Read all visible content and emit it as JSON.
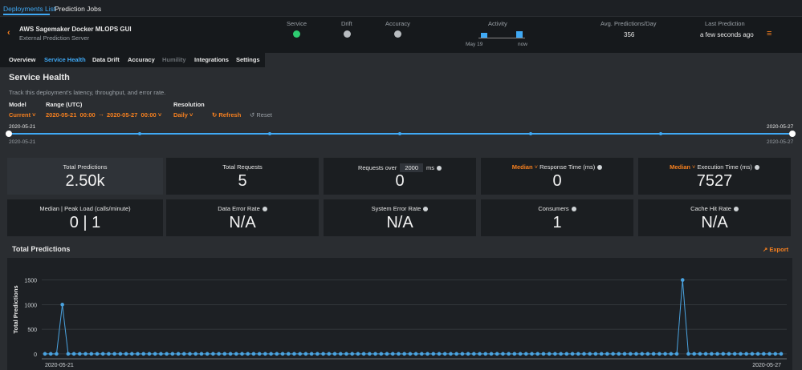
{
  "top_tabs": [
    "Deployments List",
    "Prediction Jobs"
  ],
  "deployment": {
    "name": "AWS Sagemaker Docker MLOPS GUI",
    "subtitle": "External Prediction Server"
  },
  "status": {
    "service": "Service",
    "drift": "Drift",
    "accuracy": "Accuracy",
    "activity": "Activity",
    "activity_start": "May 19",
    "activity_end": "now",
    "avg_label": "Avg. Predictions/Day",
    "avg_value": "356",
    "last_label": "Last Prediction",
    "last_value": "a few seconds ago"
  },
  "tabs": [
    "Overview",
    "Service Health",
    "Data Drift",
    "Accuracy",
    "Humility",
    "Integrations",
    "Settings"
  ],
  "section": {
    "title": "Service Health",
    "description": "Track this deployment's latency, throughput, and error rate."
  },
  "controls": {
    "model_label": "Model",
    "model_value": "Current",
    "range_label": "Range (UTC)",
    "start_date": "2020-05-21",
    "start_time": "00:00",
    "end_date": "2020-05-27",
    "end_time": "00:00",
    "resolution_label": "Resolution",
    "resolution_value": "Daily",
    "refresh": "Refresh",
    "reset": "Reset"
  },
  "slider": {
    "start_top": "2020-05-21",
    "end_top": "2020-05-27",
    "start_bottom": "2020-05-21",
    "end_bottom": "2020-05-27"
  },
  "tiles": [
    {
      "label": "Total Predictions",
      "value": "2.50k"
    },
    {
      "label": "Total Requests",
      "value": "5"
    },
    {
      "label": "Requests over",
      "input": "2000",
      "unit": "ms",
      "value": "0"
    },
    {
      "dropdown": "Median",
      "label": "Response Time (ms)",
      "value": "0"
    },
    {
      "dropdown": "Median",
      "label": "Execution Time (ms)",
      "value": "7527"
    },
    {
      "label": "Median | Peak Load (calls/minute)",
      "value": "0 | 1"
    },
    {
      "label": "Data Error Rate",
      "value": "N/A"
    },
    {
      "label": "System Error Rate",
      "value": "N/A"
    },
    {
      "label": "Consumers",
      "value": "1"
    },
    {
      "label": "Cache Hit Rate",
      "value": "N/A"
    }
  ],
  "chart_panel": {
    "title": "Total Predictions",
    "export": "Export"
  },
  "chart_data": {
    "type": "line",
    "y_label": "Total Predictions",
    "color": "#4aa3e0",
    "ylim": [
      -100,
      1900
    ],
    "yticks": [
      0,
      500,
      1000,
      1500
    ],
    "grid": true,
    "categories": [
      "2020-05-21",
      null,
      null,
      null,
      null,
      null,
      null,
      null,
      null,
      null,
      null,
      null,
      null,
      null,
      null,
      null,
      null,
      null,
      null,
      null,
      null,
      null,
      null,
      null,
      null,
      null,
      null,
      null,
      null,
      null,
      null,
      null,
      null,
      null,
      null,
      null,
      null,
      null,
      null,
      null,
      null,
      null,
      null,
      null,
      null,
      null,
      null,
      null,
      null,
      null,
      null,
      null,
      null,
      null,
      null,
      null,
      null,
      null,
      null,
      null,
      null,
      null,
      null,
      null,
      null,
      null,
      null,
      null,
      null,
      null,
      null,
      null,
      null,
      null,
      null,
      null,
      null,
      null,
      null,
      null,
      null,
      null,
      null,
      null,
      null,
      null,
      null,
      null,
      null,
      null,
      null,
      null,
      null,
      null,
      null,
      null,
      null,
      null,
      null,
      null,
      null,
      null,
      null,
      null,
      null,
      null,
      null,
      null,
      null,
      null,
      null,
      null,
      null,
      null,
      null,
      null,
      null,
      null,
      null,
      null,
      null,
      null,
      null,
      null,
      null,
      null,
      null,
      "2020-05-27"
    ],
    "values": [
      0,
      0,
      0,
      1000,
      0,
      0,
      0,
      0,
      0,
      0,
      0,
      0,
      0,
      0,
      0,
      0,
      0,
      0,
      0,
      0,
      0,
      0,
      0,
      0,
      0,
      0,
      0,
      0,
      0,
      0,
      0,
      0,
      0,
      0,
      0,
      0,
      0,
      0,
      0,
      0,
      0,
      0,
      0,
      0,
      0,
      0,
      0,
      0,
      0,
      0,
      0,
      0,
      0,
      0,
      0,
      0,
      0,
      0,
      0,
      0,
      0,
      0,
      0,
      0,
      0,
      0,
      0,
      0,
      0,
      0,
      0,
      0,
      0,
      0,
      0,
      0,
      0,
      0,
      0,
      0,
      0,
      0,
      0,
      0,
      0,
      0,
      0,
      0,
      0,
      0,
      0,
      0,
      0,
      0,
      0,
      0,
      0,
      0,
      0,
      0,
      0,
      0,
      0,
      0,
      0,
      0,
      0,
      0,
      0,
      0,
      1500,
      0,
      0,
      0,
      0,
      0,
      0,
      0,
      0,
      0,
      0,
      0,
      0,
      0,
      0,
      0,
      0,
      0
    ]
  }
}
